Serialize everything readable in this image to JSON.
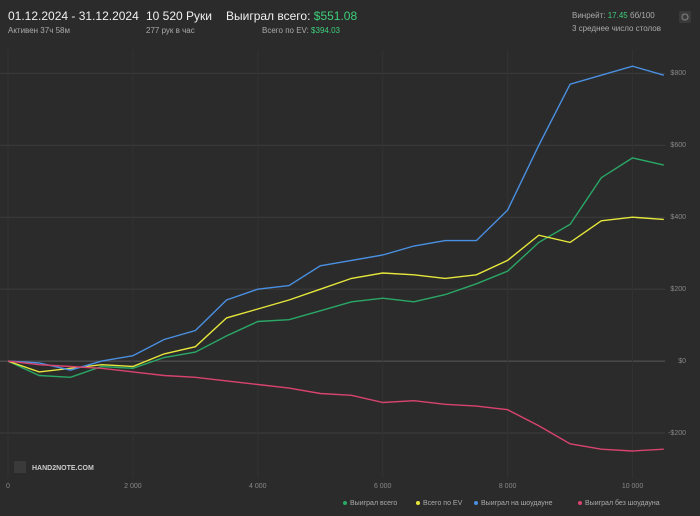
{
  "header": {
    "period": "01.12.2024 - 31.12.2024",
    "active": "Активен 37ч 58м",
    "hands": "10 520 Руки",
    "hands_per_hour": "277 рук в час",
    "won_label": "Выиграл всего:",
    "won_value": "$551.08",
    "ev_label": "Всего по EV:",
    "ev_value": "$394.03",
    "winrate_label": "Винрейт:",
    "winrate_value": "17.45",
    "winrate_unit": "бб/100",
    "tables": "3 среднее число столов"
  },
  "watermark": "HAND2NOTE.COM",
  "chart_data": {
    "type": "line",
    "x": [
      0,
      500,
      1000,
      1500,
      2000,
      2500,
      3000,
      3500,
      4000,
      4500,
      5000,
      5500,
      6000,
      6500,
      7000,
      7500,
      8000,
      8500,
      9000,
      9500,
      10000,
      10500
    ],
    "xlim": [
      0,
      10520
    ],
    "xticks": [
      0,
      {
        "value": 2000,
        "label": "2 000"
      },
      {
        "value": 4000,
        "label": "4 000"
      },
      {
        "value": 6000,
        "label": "6 000"
      },
      {
        "value": 8000,
        "label": "8 000"
      },
      {
        "value": 10000,
        "label": "10 000"
      }
    ],
    "ylim": [
      -325,
      865
    ],
    "yticks": [
      {
        "value": -200,
        "label": "-$200"
      },
      {
        "value": 0,
        "label": "$0"
      },
      {
        "value": 200,
        "label": "$200"
      },
      {
        "value": 400,
        "label": "$400"
      },
      {
        "value": 600,
        "label": "$600"
      },
      {
        "value": 800,
        "label": "$800"
      }
    ],
    "grid": true,
    "series": [
      {
        "name": "Выиграл всего",
        "color": "#29a866",
        "values": [
          0,
          -40,
          -45,
          -15,
          -20,
          10,
          25,
          70,
          110,
          115,
          140,
          165,
          175,
          165,
          185,
          215,
          250,
          330,
          380,
          510,
          565,
          545
        ]
      },
      {
        "name": "Всего по EV",
        "color": "#e6e63c",
        "values": [
          0,
          -30,
          -20,
          -10,
          -15,
          20,
          40,
          120,
          145,
          170,
          200,
          230,
          245,
          240,
          230,
          240,
          280,
          350,
          330,
          390,
          400,
          394
        ]
      },
      {
        "name": "Выиграл на шоудауне",
        "color": "#4a90e2",
        "values": [
          0,
          -5,
          -25,
          0,
          15,
          60,
          85,
          170,
          200,
          210,
          265,
          280,
          295,
          320,
          335,
          335,
          420,
          600,
          770,
          795,
          820,
          795
        ]
      },
      {
        "name": "Выиграл без шоудауна",
        "color": "#d9436f",
        "values": [
          0,
          -10,
          -15,
          -20,
          -30,
          -40,
          -45,
          -55,
          -65,
          -75,
          -90,
          -95,
          -115,
          -110,
          -120,
          -125,
          -135,
          -180,
          -230,
          -245,
          -250,
          -245
        ]
      }
    ]
  }
}
